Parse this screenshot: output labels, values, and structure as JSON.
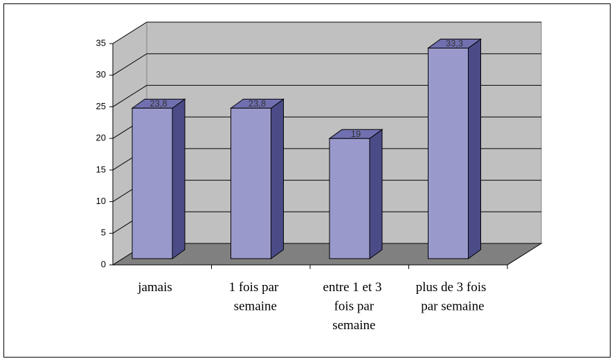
{
  "chart_data": {
    "type": "bar3d",
    "categories": [
      "jamais",
      "1 fois par semaine",
      "entre 1 et 3 fois par semaine",
      "plus de 3 fois par semaine"
    ],
    "values": [
      23.8,
      23.8,
      19,
      33.3
    ],
    "value_labels": [
      "23,8",
      "23,8",
      "19",
      "33,3"
    ],
    "color": "#9999cc",
    "ylim": [
      0,
      35
    ],
    "yticks": [
      0,
      5,
      10,
      15,
      20,
      25,
      30,
      35
    ],
    "grid": true
  }
}
